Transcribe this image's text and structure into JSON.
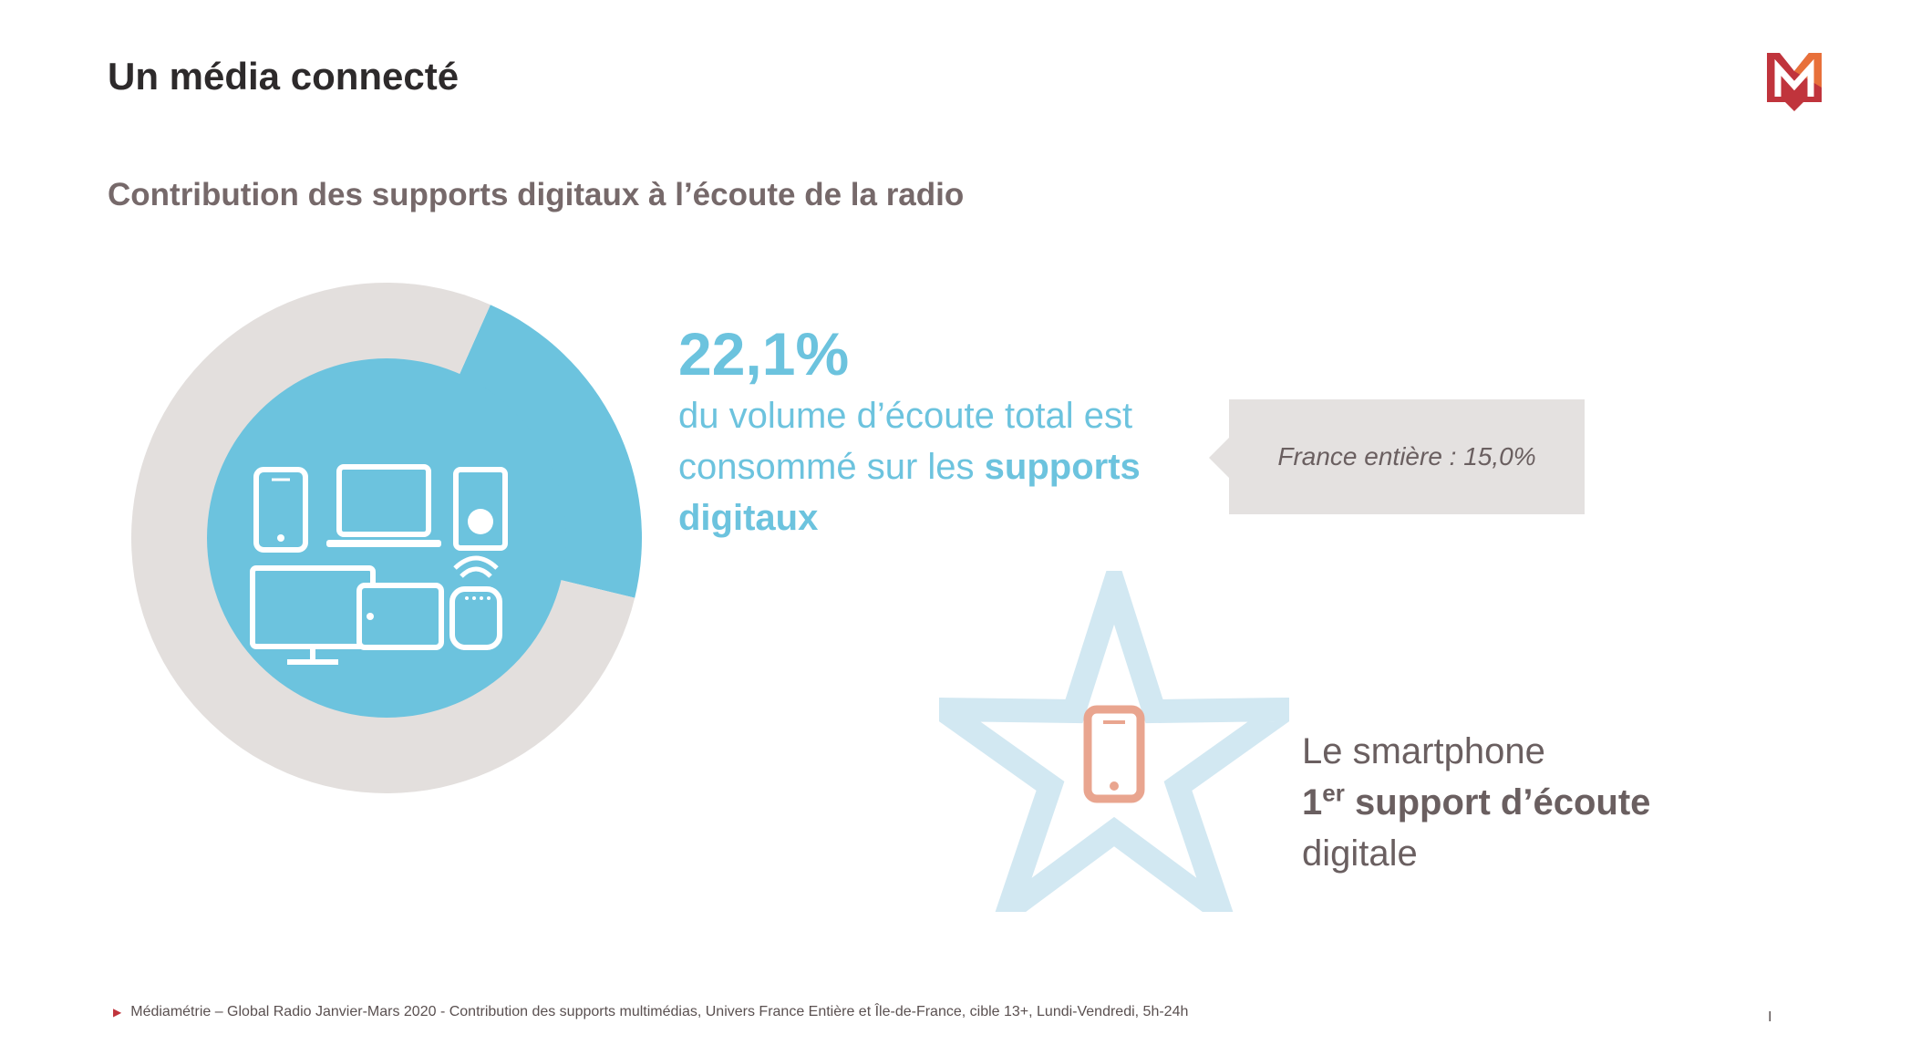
{
  "header": {
    "title": "Un média connecté",
    "subtitle": "Contribution des supports digitaux à l’écoute de la radio"
  },
  "chart_data": {
    "type": "pie",
    "variant": "donut",
    "slices": [
      {
        "value": 22.1,
        "color": "#6cc3de"
      },
      {
        "value": 77.9,
        "color": "#e3dfdd"
      }
    ],
    "title": "",
    "legend": "none"
  },
  "highlight": {
    "value": "22,1%",
    "line1": "du volume d’écoute total est",
    "line2_prefix": "consommé sur les ",
    "line2_bold": "supports",
    "line3_bold": "digitaux"
  },
  "callout": {
    "text": "France entière : 15,0%"
  },
  "smartphone": {
    "line1": "Le smartphone",
    "line2_num": "1",
    "line2_sup": "er",
    "line2_rest": " support d’écoute",
    "line3": "digitale"
  },
  "footnote": {
    "text": "Médiamétrie – Global Radio Janvier-Mars 2020 - Contribution des supports multimédias, Univers France Entière et Île-de-France, cible 13+, Lundi-Vendredi, 5h-24h",
    "page": "I"
  },
  "icons": {
    "logo": "mediametrie-logo",
    "devices": [
      "smartphone-icon",
      "laptop-icon",
      "music-player-icon",
      "monitor-icon",
      "tablet-icon",
      "smart-speaker-icon"
    ],
    "star": "star-icon"
  },
  "colors": {
    "accent_blue": "#6cc3de",
    "donut_gray": "#e3dfdd",
    "star_blue": "#d2e8f2",
    "phone_orange": "#e9a58f",
    "brand_red": "#c0343c",
    "callout_bg": "#e4e1e0"
  }
}
